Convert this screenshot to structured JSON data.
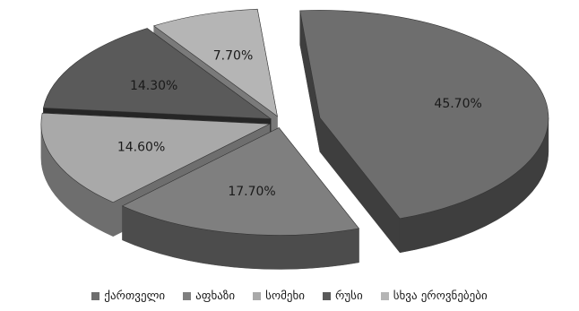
{
  "chart_data": {
    "type": "pie",
    "title": "",
    "exploded": true,
    "three_d": true,
    "legend_position": "bottom",
    "slices": [
      {
        "name": "ქართველი",
        "value": 45.7,
        "label": "45.70%",
        "color": "#6e6e6e",
        "side_color": "#3e3e3e"
      },
      {
        "name": "აფხაზი",
        "value": 17.7,
        "label": "17.70%",
        "color": "#7f7f7f",
        "side_color": "#4c4c4c"
      },
      {
        "name": "სომეხი",
        "value": 14.6,
        "label": "14.60%",
        "color": "#a9a9a9",
        "side_color": "#6e6e6e"
      },
      {
        "name": "რუსი",
        "value": 14.3,
        "label": "14.30%",
        "color": "#5a5a5a",
        "side_color": "#262626"
      },
      {
        "name": "სხვა ეროვნებები",
        "value": 7.7,
        "label": "7.70%",
        "color": "#b5b5b5",
        "side_color": "#7a7a7a"
      }
    ]
  }
}
